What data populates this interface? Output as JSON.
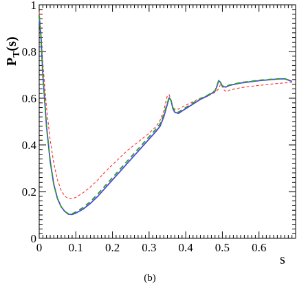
{
  "chart_data": {
    "type": "line",
    "caption": "(b)",
    "xlabel": "s",
    "ylabel": {
      "main": "P",
      "sub": "T",
      "suffix": "(s)"
    },
    "xlim": [
      0,
      0.7
    ],
    "ylim": [
      0,
      1
    ],
    "x_ticks": [
      0,
      0.1,
      0.2,
      0.3,
      0.4,
      0.5,
      0.6
    ],
    "x_tick_labels": [
      "0",
      "0.1",
      "0.2",
      "0.3",
      "0.4",
      "0.5",
      "0.6"
    ],
    "y_ticks": [
      0,
      0.2,
      0.4,
      0.6,
      0.8,
      1
    ],
    "y_tick_labels": [
      "0",
      "0.2",
      "0.4",
      "0.6",
      "0.8",
      "1"
    ],
    "series": [
      {
        "color": "#ff2a2a",
        "dash": "4,3",
        "width": 1.1,
        "points": [
          [
            0.0,
            0.97
          ],
          [
            0.005,
            0.88
          ],
          [
            0.01,
            0.75
          ],
          [
            0.02,
            0.56
          ],
          [
            0.03,
            0.42
          ],
          [
            0.04,
            0.32
          ],
          [
            0.05,
            0.25
          ],
          [
            0.06,
            0.205
          ],
          [
            0.07,
            0.18
          ],
          [
            0.08,
            0.17
          ],
          [
            0.09,
            0.17
          ],
          [
            0.1,
            0.175
          ],
          [
            0.12,
            0.195
          ],
          [
            0.14,
            0.22
          ],
          [
            0.16,
            0.25
          ],
          [
            0.18,
            0.285
          ],
          [
            0.2,
            0.315
          ],
          [
            0.22,
            0.345
          ],
          [
            0.24,
            0.375
          ],
          [
            0.26,
            0.4
          ],
          [
            0.28,
            0.425
          ],
          [
            0.3,
            0.45
          ],
          [
            0.32,
            0.48
          ],
          [
            0.33,
            0.505
          ],
          [
            0.34,
            0.545
          ],
          [
            0.345,
            0.58
          ],
          [
            0.35,
            0.612
          ],
          [
            0.355,
            0.615
          ],
          [
            0.36,
            0.585
          ],
          [
            0.365,
            0.56
          ],
          [
            0.37,
            0.553
          ],
          [
            0.38,
            0.553
          ],
          [
            0.4,
            0.57
          ],
          [
            0.42,
            0.585
          ],
          [
            0.44,
            0.6
          ],
          [
            0.46,
            0.61
          ],
          [
            0.48,
            0.625
          ],
          [
            0.49,
            0.64
          ],
          [
            0.495,
            0.66
          ],
          [
            0.5,
            0.65
          ],
          [
            0.505,
            0.635
          ],
          [
            0.51,
            0.628
          ],
          [
            0.52,
            0.635
          ],
          [
            0.55,
            0.645
          ],
          [
            0.6,
            0.655
          ],
          [
            0.65,
            0.663
          ],
          [
            0.69,
            0.668
          ]
        ]
      },
      {
        "color": "#4a4ad8",
        "dash": "",
        "width": 1.8,
        "points": [
          [
            0.0,
            0.95
          ],
          [
            0.005,
            0.86
          ],
          [
            0.01,
            0.7
          ],
          [
            0.02,
            0.48
          ],
          [
            0.03,
            0.33
          ],
          [
            0.04,
            0.23
          ],
          [
            0.05,
            0.17
          ],
          [
            0.06,
            0.135
          ],
          [
            0.07,
            0.115
          ],
          [
            0.08,
            0.103
          ],
          [
            0.09,
            0.102
          ],
          [
            0.1,
            0.108
          ],
          [
            0.12,
            0.125
          ],
          [
            0.14,
            0.15
          ],
          [
            0.16,
            0.18
          ],
          [
            0.18,
            0.215
          ],
          [
            0.2,
            0.25
          ],
          [
            0.22,
            0.285
          ],
          [
            0.24,
            0.32
          ],
          [
            0.26,
            0.355
          ],
          [
            0.28,
            0.39
          ],
          [
            0.3,
            0.425
          ],
          [
            0.32,
            0.46
          ],
          [
            0.33,
            0.48
          ],
          [
            0.34,
            0.52
          ],
          [
            0.35,
            0.575
          ],
          [
            0.355,
            0.602
          ],
          [
            0.36,
            0.59
          ],
          [
            0.365,
            0.555
          ],
          [
            0.37,
            0.54
          ],
          [
            0.38,
            0.535
          ],
          [
            0.4,
            0.555
          ],
          [
            0.42,
            0.575
          ],
          [
            0.44,
            0.595
          ],
          [
            0.46,
            0.61
          ],
          [
            0.48,
            0.63
          ],
          [
            0.485,
            0.65
          ],
          [
            0.49,
            0.675
          ],
          [
            0.495,
            0.668
          ],
          [
            0.5,
            0.65
          ],
          [
            0.51,
            0.648
          ],
          [
            0.52,
            0.655
          ],
          [
            0.55,
            0.665
          ],
          [
            0.6,
            0.675
          ],
          [
            0.65,
            0.682
          ],
          [
            0.67,
            0.683
          ],
          [
            0.69,
            0.672
          ]
        ]
      },
      {
        "color": "#2e9a2e",
        "dash": "7,5",
        "width": 1.8,
        "points": [
          [
            0.0,
            0.95
          ],
          [
            0.005,
            0.86
          ],
          [
            0.01,
            0.7
          ],
          [
            0.02,
            0.48
          ],
          [
            0.03,
            0.33
          ],
          [
            0.04,
            0.23
          ],
          [
            0.05,
            0.17
          ],
          [
            0.06,
            0.135
          ],
          [
            0.07,
            0.115
          ],
          [
            0.08,
            0.105
          ],
          [
            0.09,
            0.105
          ],
          [
            0.1,
            0.113
          ],
          [
            0.12,
            0.132
          ],
          [
            0.14,
            0.158
          ],
          [
            0.16,
            0.19
          ],
          [
            0.18,
            0.225
          ],
          [
            0.2,
            0.26
          ],
          [
            0.22,
            0.295
          ],
          [
            0.24,
            0.33
          ],
          [
            0.26,
            0.365
          ],
          [
            0.28,
            0.4
          ],
          [
            0.3,
            0.435
          ],
          [
            0.32,
            0.47
          ],
          [
            0.33,
            0.49
          ],
          [
            0.34,
            0.53
          ],
          [
            0.35,
            0.58
          ],
          [
            0.355,
            0.605
          ],
          [
            0.36,
            0.59
          ],
          [
            0.365,
            0.56
          ],
          [
            0.37,
            0.545
          ],
          [
            0.38,
            0.54
          ],
          [
            0.4,
            0.56
          ],
          [
            0.42,
            0.58
          ],
          [
            0.44,
            0.598
          ],
          [
            0.46,
            0.613
          ],
          [
            0.48,
            0.632
          ],
          [
            0.485,
            0.652
          ],
          [
            0.49,
            0.676
          ],
          [
            0.495,
            0.668
          ],
          [
            0.5,
            0.652
          ],
          [
            0.51,
            0.65
          ],
          [
            0.52,
            0.657
          ],
          [
            0.55,
            0.667
          ],
          [
            0.6,
            0.677
          ],
          [
            0.65,
            0.683
          ],
          [
            0.67,
            0.684
          ],
          [
            0.69,
            0.673
          ]
        ]
      }
    ]
  }
}
